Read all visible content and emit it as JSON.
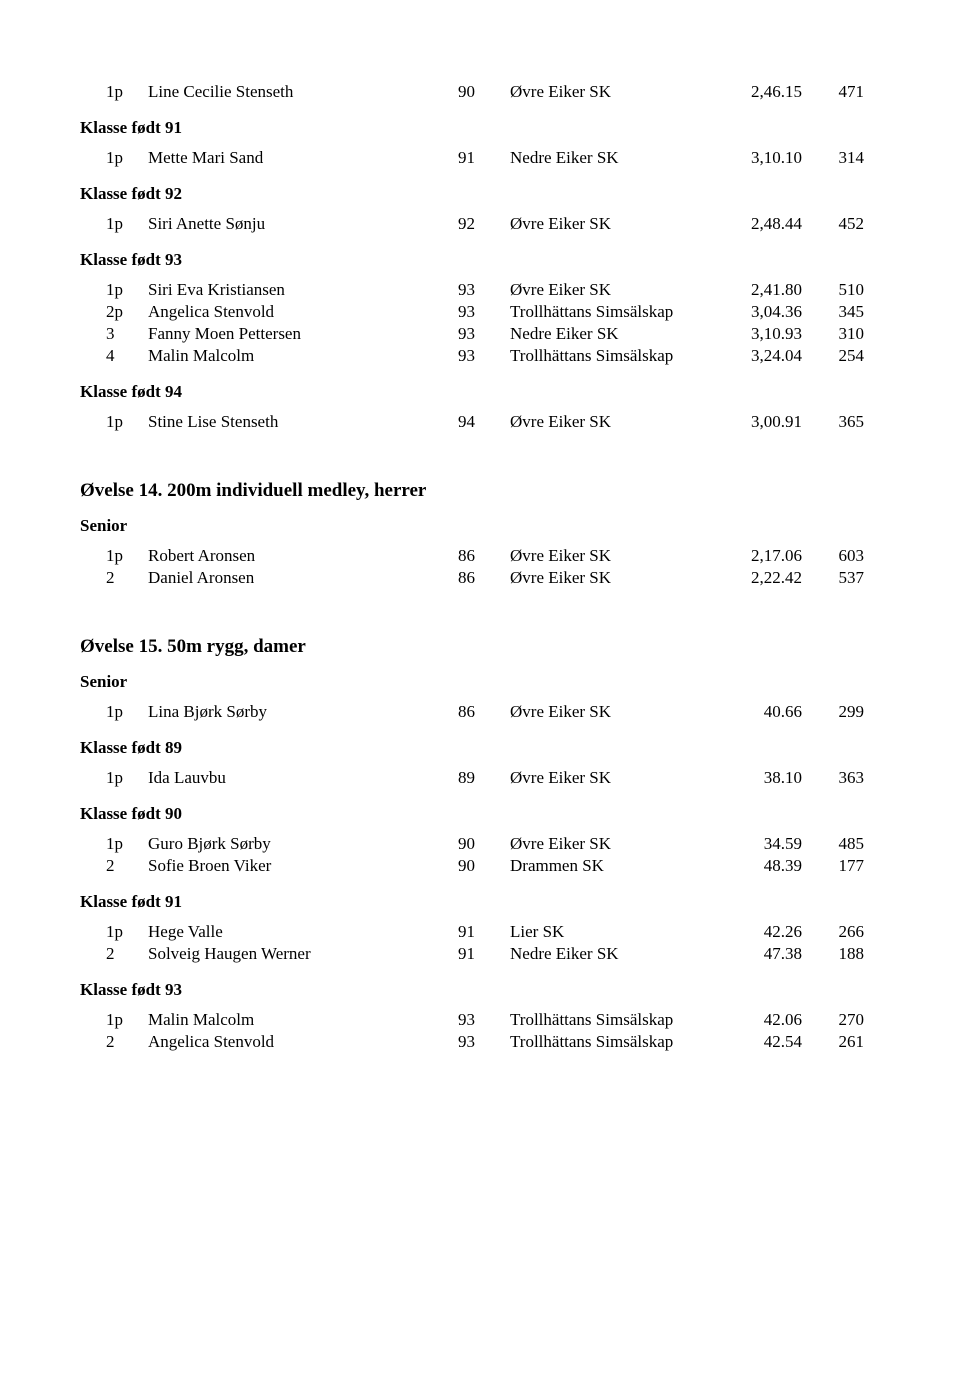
{
  "top_rows": [
    {
      "place": "1p",
      "name": "Line Cecilie Stenseth",
      "year": "90",
      "club": "Øvre Eiker SK",
      "time": "2,46.15",
      "pts": "471"
    }
  ],
  "klasser_top": [
    {
      "label": "Klasse født 91",
      "rows": [
        {
          "place": "1p",
          "name": "Mette Mari Sand",
          "year": "91",
          "club": "Nedre Eiker SK",
          "time": "3,10.10",
          "pts": "314"
        }
      ]
    },
    {
      "label": "Klasse født 92",
      "rows": [
        {
          "place": "1p",
          "name": "Siri Anette Sønju",
          "year": "92",
          "club": "Øvre Eiker SK",
          "time": "2,48.44",
          "pts": "452"
        }
      ]
    },
    {
      "label": "Klasse født 93",
      "rows": [
        {
          "place": "1p",
          "name": "Siri Eva Kristiansen",
          "year": "93",
          "club": "Øvre Eiker SK",
          "time": "2,41.80",
          "pts": "510"
        },
        {
          "place": "2p",
          "name": "Angelica Stenvold",
          "year": "93",
          "club": "Trollhättans Simsälskap",
          "time": "3,04.36",
          "pts": "345"
        },
        {
          "place": "3",
          "name": "Fanny Moen Pettersen",
          "year": "93",
          "club": "Nedre Eiker SK",
          "time": "3,10.93",
          "pts": "310"
        },
        {
          "place": "4",
          "name": "Malin Malcolm",
          "year": "93",
          "club": "Trollhättans Simsälskap",
          "time": "3,24.04",
          "pts": "254"
        }
      ]
    },
    {
      "label": "Klasse født 94",
      "rows": [
        {
          "place": "1p",
          "name": "Stine Lise Stenseth",
          "year": "94",
          "club": "Øvre Eiker SK",
          "time": "3,00.91",
          "pts": "365"
        }
      ]
    }
  ],
  "event14": {
    "title": "Øvelse 14. 200m individuell medley, herrer",
    "senior_label": "Senior",
    "senior_rows": [
      {
        "place": "1p",
        "name": "Robert Aronsen",
        "year": "86",
        "club": "Øvre Eiker SK",
        "time": "2,17.06",
        "pts": "603"
      },
      {
        "place": "2",
        "name": "Daniel Aronsen",
        "year": "86",
        "club": "Øvre Eiker SK",
        "time": "2,22.42",
        "pts": "537"
      }
    ]
  },
  "event15": {
    "title": "Øvelse 15. 50m rygg, damer",
    "senior_label": "Senior",
    "senior_rows": [
      {
        "place": "1p",
        "name": "Lina Bjørk Sørby",
        "year": "86",
        "club": "Øvre Eiker SK",
        "time": "40.66",
        "pts": "299"
      }
    ],
    "klasser": [
      {
        "label": "Klasse født 89",
        "rows": [
          {
            "place": "1p",
            "name": "Ida Lauvbu",
            "year": "89",
            "club": "Øvre Eiker SK",
            "time": "38.10",
            "pts": "363"
          }
        ]
      },
      {
        "label": "Klasse født 90",
        "rows": [
          {
            "place": "1p",
            "name": "Guro Bjørk Sørby",
            "year": "90",
            "club": "Øvre Eiker SK",
            "time": "34.59",
            "pts": "485"
          },
          {
            "place": "2",
            "name": "Sofie Broen Viker",
            "year": "90",
            "club": "Drammen SK",
            "time": "48.39",
            "pts": "177"
          }
        ]
      },
      {
        "label": "Klasse født 91",
        "rows": [
          {
            "place": "1p",
            "name": "Hege Valle",
            "year": "91",
            "club": "Lier SK",
            "time": "42.26",
            "pts": "266"
          },
          {
            "place": "2",
            "name": "Solveig Haugen Werner",
            "year": "91",
            "club": "Nedre Eiker SK",
            "time": "47.38",
            "pts": "188"
          }
        ]
      },
      {
        "label": "Klasse født 93",
        "rows": [
          {
            "place": "1p",
            "name": "Malin Malcolm",
            "year": "93",
            "club": "Trollhättans Simsälskap",
            "time": "42.06",
            "pts": "270"
          },
          {
            "place": "2",
            "name": "Angelica Stenvold",
            "year": "93",
            "club": "Trollhättans Simsälskap",
            "time": "42.54",
            "pts": "261"
          }
        ]
      }
    ]
  }
}
